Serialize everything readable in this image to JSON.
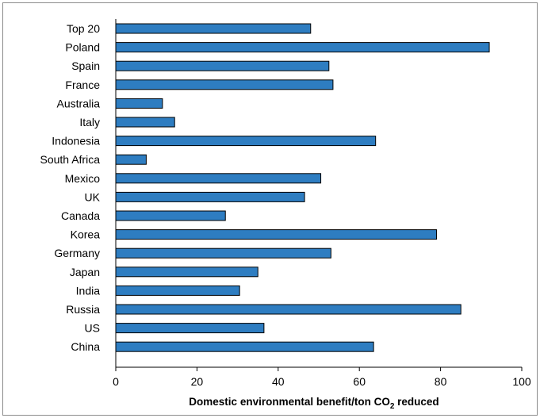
{
  "chart_data": {
    "type": "bar",
    "orientation": "horizontal",
    "categories": [
      "Top 20",
      "Poland",
      "Spain",
      "France",
      "Australia",
      "Italy",
      "Indonesia",
      "South Africa",
      "Mexico",
      "UK",
      "Canada",
      "Korea",
      "Germany",
      "Japan",
      "India",
      "Russia",
      "US",
      "China"
    ],
    "values": [
      48,
      92,
      52.5,
      53.5,
      11.5,
      14.5,
      64,
      7.5,
      50.5,
      46.5,
      27,
      79,
      53,
      35,
      30.5,
      85,
      36.5,
      63.5
    ],
    "xlabel_main": "Domestic environmental benefit/ton CO",
    "xlabel_sub": "2",
    "xlabel_end": " reduced",
    "xlim": [
      0,
      100
    ],
    "xticks": [
      0,
      20,
      40,
      60,
      80,
      100
    ],
    "grid": false,
    "bar_color": "#2e7dc1",
    "bar_edge_color": "#000000"
  }
}
